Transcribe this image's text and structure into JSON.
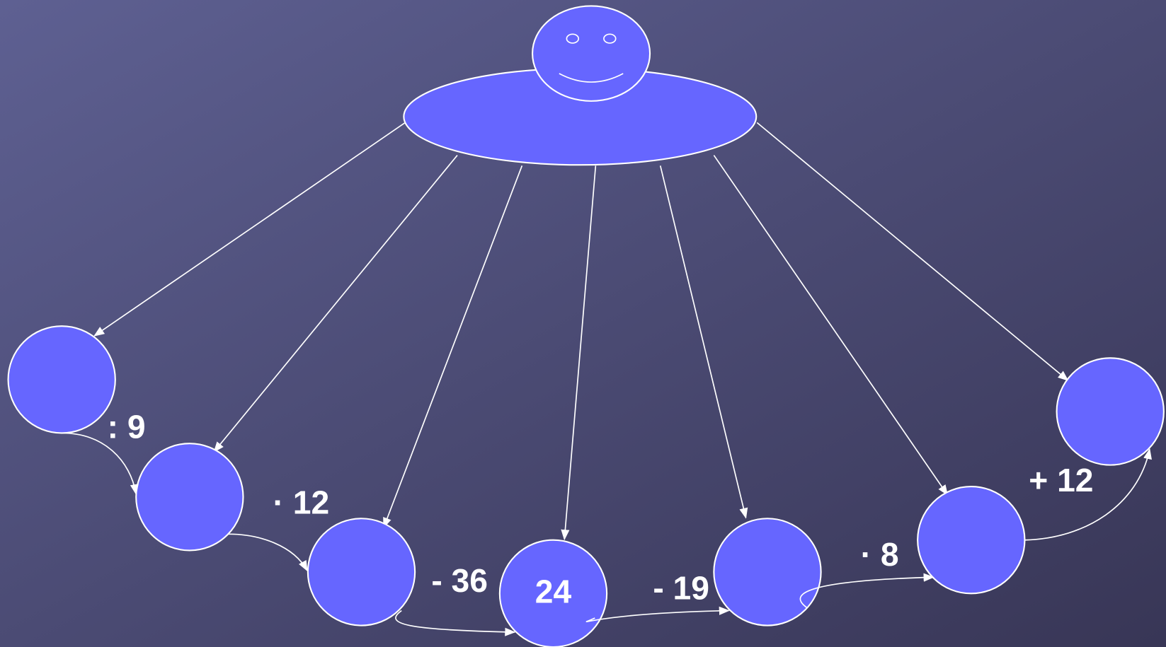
{
  "operations": [
    ": 9",
    "· 12",
    "- 36",
    "- 19",
    "· 8",
    "+ 12"
  ],
  "center_node": {
    "label": "24"
  }
}
